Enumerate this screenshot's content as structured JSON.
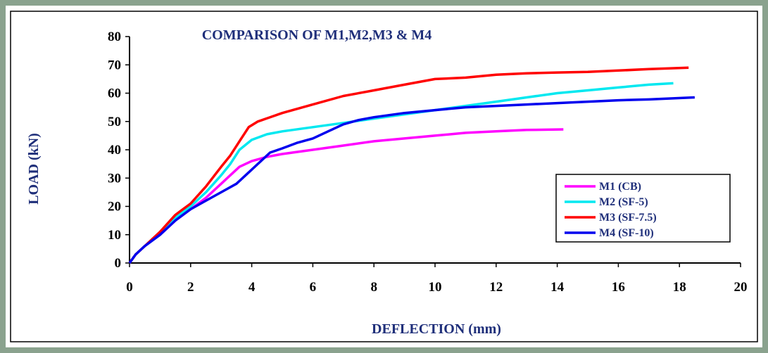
{
  "chart_data": {
    "type": "line",
    "title": "COMPARISON OF M1,M2,M3 & M4",
    "xlabel": "DEFLECTION (mm)",
    "ylabel": "LOAD (kN)",
    "xlim": [
      0,
      20
    ],
    "ylim": [
      0,
      80
    ],
    "xticks": [
      0,
      2,
      4,
      6,
      8,
      10,
      12,
      14,
      16,
      18,
      20
    ],
    "yticks": [
      0,
      10,
      20,
      30,
      40,
      50,
      60,
      70,
      80
    ],
    "grid": false,
    "legend_position": "right",
    "series": [
      {
        "name": "M1 (CB)",
        "color": "#ff00ff",
        "points": [
          [
            0,
            0
          ],
          [
            0.2,
            3
          ],
          [
            0.5,
            6
          ],
          [
            1,
            10
          ],
          [
            1.5,
            15
          ],
          [
            2,
            19
          ],
          [
            2.5,
            23
          ],
          [
            3,
            28
          ],
          [
            3.3,
            31
          ],
          [
            3.6,
            34
          ],
          [
            4,
            36
          ],
          [
            4.5,
            37.5
          ],
          [
            5,
            38.5
          ],
          [
            6,
            40
          ],
          [
            7,
            41.5
          ],
          [
            8,
            43
          ],
          [
            9,
            44
          ],
          [
            10,
            45
          ],
          [
            11,
            46
          ],
          [
            12,
            46.5
          ],
          [
            13,
            47
          ],
          [
            14.2,
            47.2
          ]
        ]
      },
      {
        "name": "M2 (SF-5)",
        "color": "#00e8f0",
        "points": [
          [
            0,
            0
          ],
          [
            0.2,
            3
          ],
          [
            0.5,
            6
          ],
          [
            1,
            10
          ],
          [
            1.5,
            16
          ],
          [
            2,
            20
          ],
          [
            2.5,
            25
          ],
          [
            3,
            31
          ],
          [
            3.3,
            35
          ],
          [
            3.6,
            40
          ],
          [
            4,
            43.5
          ],
          [
            4.5,
            45.5
          ],
          [
            5,
            46.5
          ],
          [
            6,
            48
          ],
          [
            7,
            49.5
          ],
          [
            8,
            51
          ],
          [
            9,
            52.5
          ],
          [
            10,
            54
          ],
          [
            11,
            55.5
          ],
          [
            12,
            57
          ],
          [
            13,
            58.5
          ],
          [
            14,
            60
          ],
          [
            15,
            61
          ],
          [
            16,
            62
          ],
          [
            17,
            63
          ],
          [
            17.8,
            63.5
          ]
        ]
      },
      {
        "name": "M3 (SF-7.5)",
        "color": "#ff0000",
        "points": [
          [
            0,
            0
          ],
          [
            0.2,
            3
          ],
          [
            0.5,
            6
          ],
          [
            1,
            11
          ],
          [
            1.5,
            17
          ],
          [
            2,
            21
          ],
          [
            2.5,
            27
          ],
          [
            3,
            34
          ],
          [
            3.3,
            38
          ],
          [
            3.6,
            43
          ],
          [
            3.9,
            48
          ],
          [
            4.2,
            50
          ],
          [
            5,
            53
          ],
          [
            6,
            56
          ],
          [
            7,
            59
          ],
          [
            8,
            61
          ],
          [
            9,
            63
          ],
          [
            10,
            65
          ],
          [
            11,
            65.5
          ],
          [
            12,
            66.5
          ],
          [
            13,
            67
          ],
          [
            14,
            67.3
          ],
          [
            15,
            67.5
          ],
          [
            16,
            68
          ],
          [
            17,
            68.5
          ],
          [
            18.3,
            69
          ]
        ]
      },
      {
        "name": "M4 (SF-10)",
        "color": "#0000ee",
        "points": [
          [
            0,
            0
          ],
          [
            0.2,
            3
          ],
          [
            0.5,
            6
          ],
          [
            1,
            10
          ],
          [
            1.5,
            15
          ],
          [
            2,
            19
          ],
          [
            2.5,
            22
          ],
          [
            3,
            25
          ],
          [
            3.5,
            28
          ],
          [
            3.9,
            32
          ],
          [
            4.3,
            36
          ],
          [
            4.6,
            39
          ],
          [
            5,
            40.5
          ],
          [
            5.5,
            42.5
          ],
          [
            6,
            44
          ],
          [
            6.5,
            46.5
          ],
          [
            7,
            49
          ],
          [
            7.5,
            50.5
          ],
          [
            8,
            51.5
          ],
          [
            9,
            53
          ],
          [
            10,
            54
          ],
          [
            11,
            55
          ],
          [
            12,
            55.5
          ],
          [
            13,
            56
          ],
          [
            14,
            56.5
          ],
          [
            15,
            57
          ],
          [
            16,
            57.5
          ],
          [
            17,
            57.8
          ],
          [
            18.5,
            58.5
          ]
        ]
      }
    ]
  }
}
